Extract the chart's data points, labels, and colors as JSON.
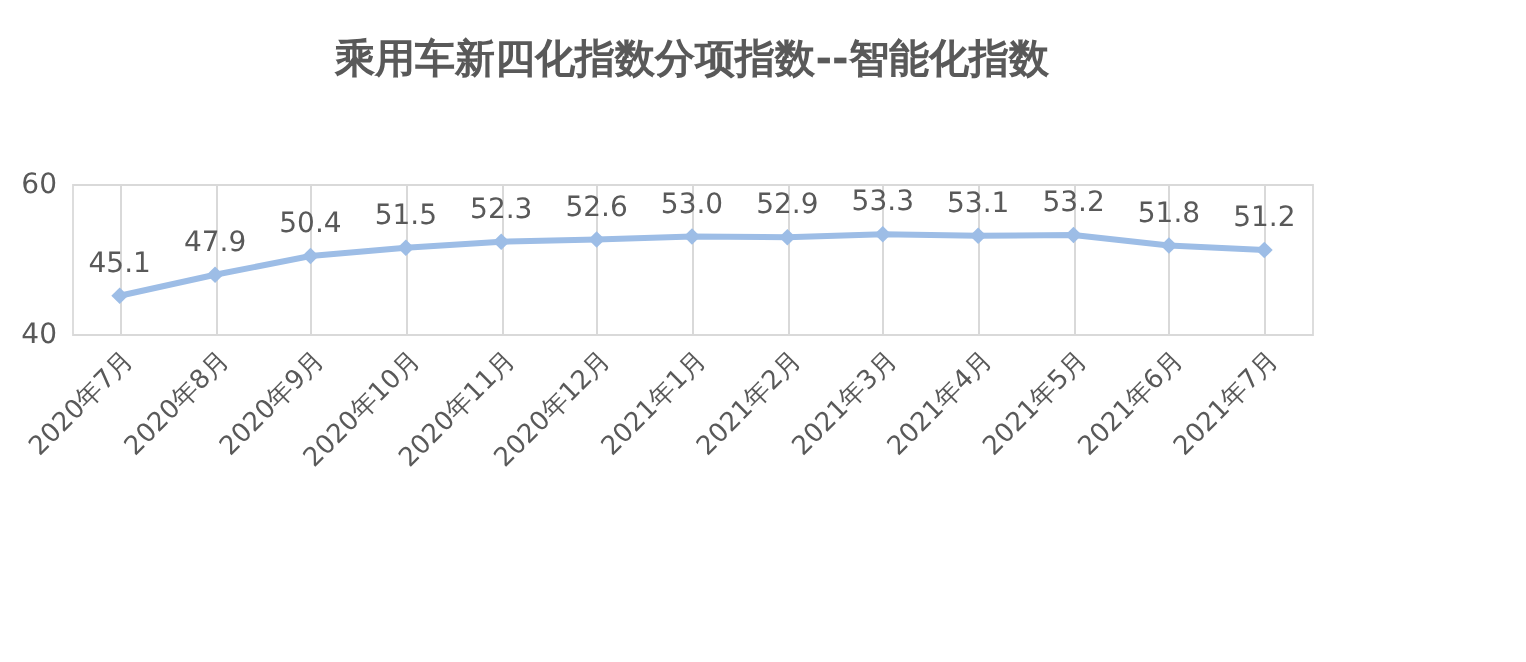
{
  "chart_data": {
    "type": "line",
    "title": "乘用车新四化指数分项指数--智能化指数",
    "categories": [
      "2020年7月",
      "2020年8月",
      "2020年9月",
      "2020年10月",
      "2020年11月",
      "2020年12月",
      "2021年1月",
      "2021年2月",
      "2021年3月",
      "2021年4月",
      "2021年5月",
      "2021年6月",
      "2021年7月"
    ],
    "series": [
      {
        "color": "#9dbde6",
        "values": [
          45.1,
          47.9,
          50.4,
          51.5,
          52.3,
          52.6,
          53.0,
          52.9,
          53.3,
          53.1,
          53.2,
          51.8,
          51.2
        ]
      }
    ],
    "ylim": [
      40,
      60
    ],
    "yticks": [
      40,
      60
    ],
    "grid": true,
    "marker": "diamond",
    "value_labels": [
      "45.1",
      "47.9",
      "50.4",
      "51.5",
      "52.3",
      "52.6",
      "53.0",
      "52.9",
      "53.3",
      "53.1",
      "53.2",
      "51.8",
      "51.2"
    ]
  }
}
